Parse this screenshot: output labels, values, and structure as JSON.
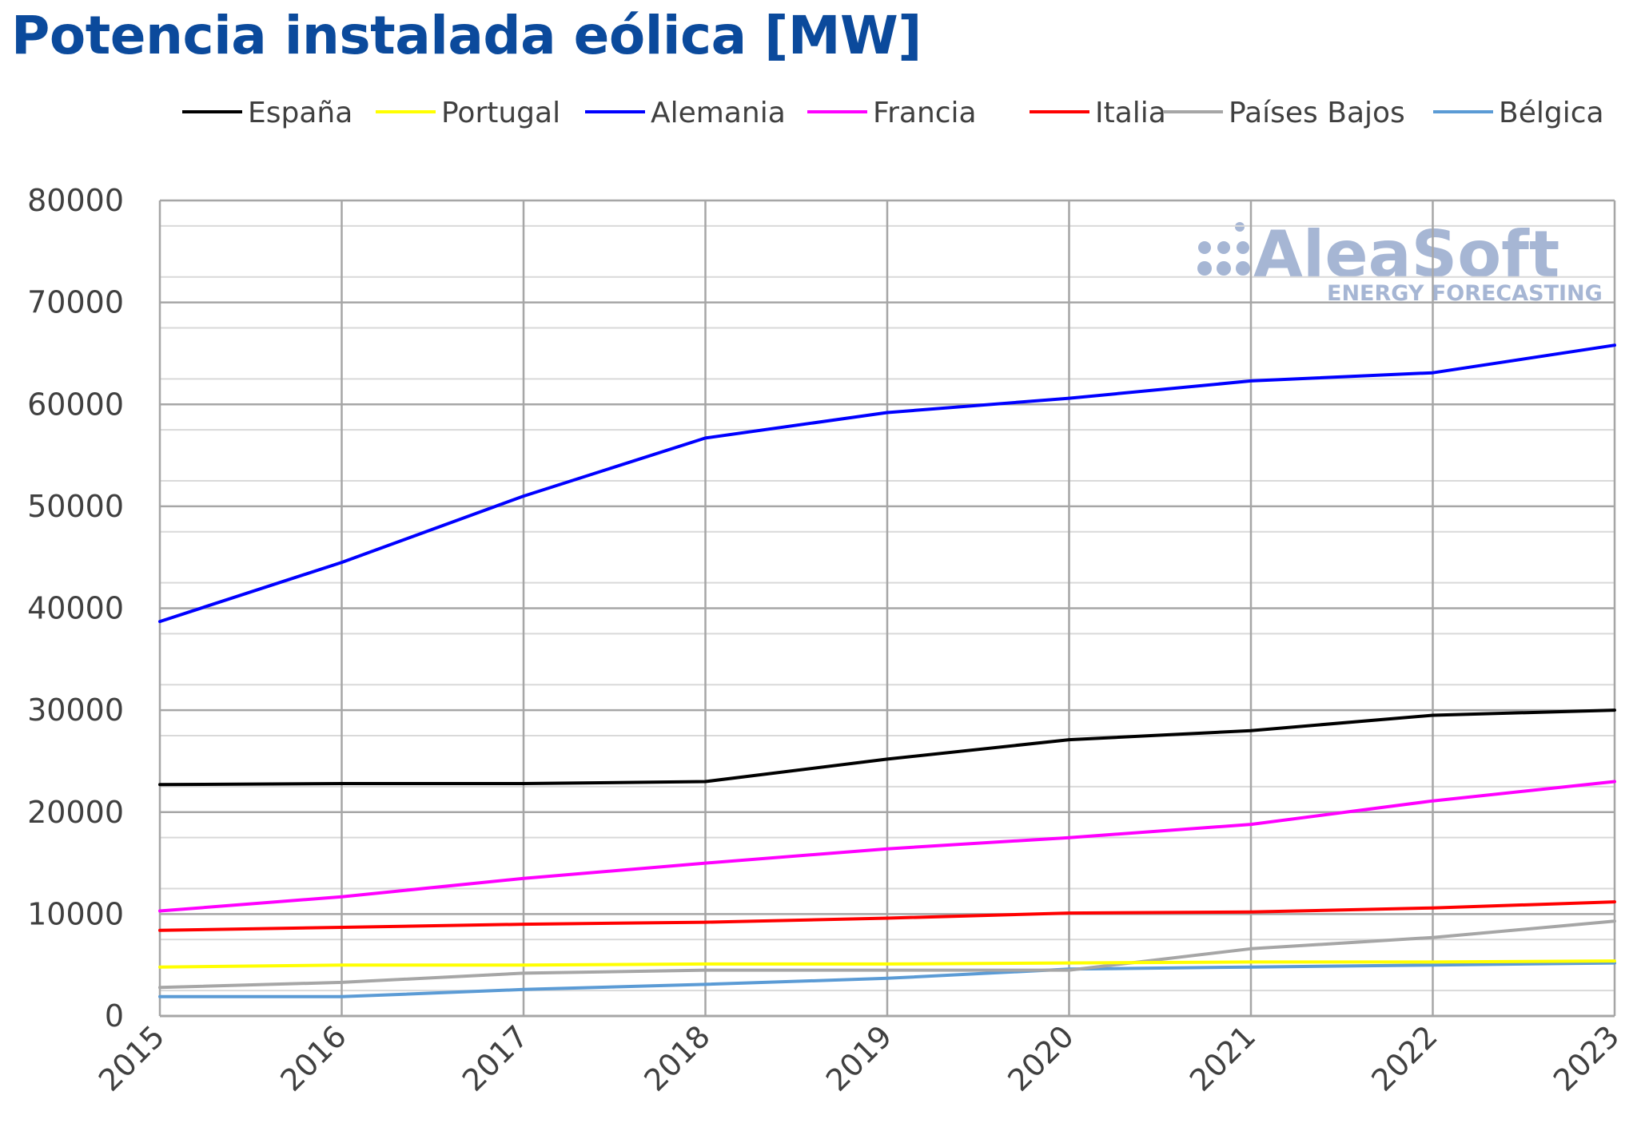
{
  "chart_data": {
    "type": "line",
    "title": "Potencia instalada eólica [MW]",
    "x": [
      "2015",
      "2016",
      "2017",
      "2018",
      "2019",
      "2020",
      "2021",
      "2022",
      "2023"
    ],
    "ylim": [
      0,
      80000
    ],
    "yticks": [
      "0",
      "10000",
      "20000",
      "30000",
      "40000",
      "50000",
      "60000",
      "70000",
      "80000"
    ],
    "grid": true,
    "legend_position": "top",
    "series": [
      {
        "name": "España",
        "color": "#000000",
        "values": [
          22700,
          22800,
          22800,
          23000,
          25200,
          27100,
          28000,
          29500,
          30000
        ]
      },
      {
        "name": "Portugal",
        "color": "#ffff00",
        "values": [
          4800,
          5000,
          5000,
          5100,
          5100,
          5200,
          5300,
          5300,
          5400
        ]
      },
      {
        "name": "Alemania",
        "color": "#0000ff",
        "values": [
          38700,
          44500,
          51000,
          56700,
          59200,
          60600,
          62300,
          63100,
          65800
        ]
      },
      {
        "name": "Francia",
        "color": "#ff00ff",
        "values": [
          10300,
          11700,
          13500,
          15000,
          16400,
          17500,
          18800,
          21100,
          23000
        ]
      },
      {
        "name": "Italia",
        "color": "#ff0000",
        "values": [
          8400,
          8700,
          9000,
          9200,
          9600,
          10100,
          10200,
          10600,
          11200
        ]
      },
      {
        "name": "Países Bajos",
        "color": "#a6a6a6",
        "values": [
          2800,
          3300,
          4200,
          4500,
          4500,
          4500,
          6600,
          7700,
          9300
        ]
      },
      {
        "name": "Bélgica",
        "color": "#5b9bd5",
        "values": [
          1900,
          1900,
          2600,
          3100,
          3700,
          4600,
          4800,
          5000,
          5200
        ]
      }
    ]
  },
  "watermark": {
    "brand": "AleaSoft",
    "tagline": "ENERGY FORECASTING"
  }
}
